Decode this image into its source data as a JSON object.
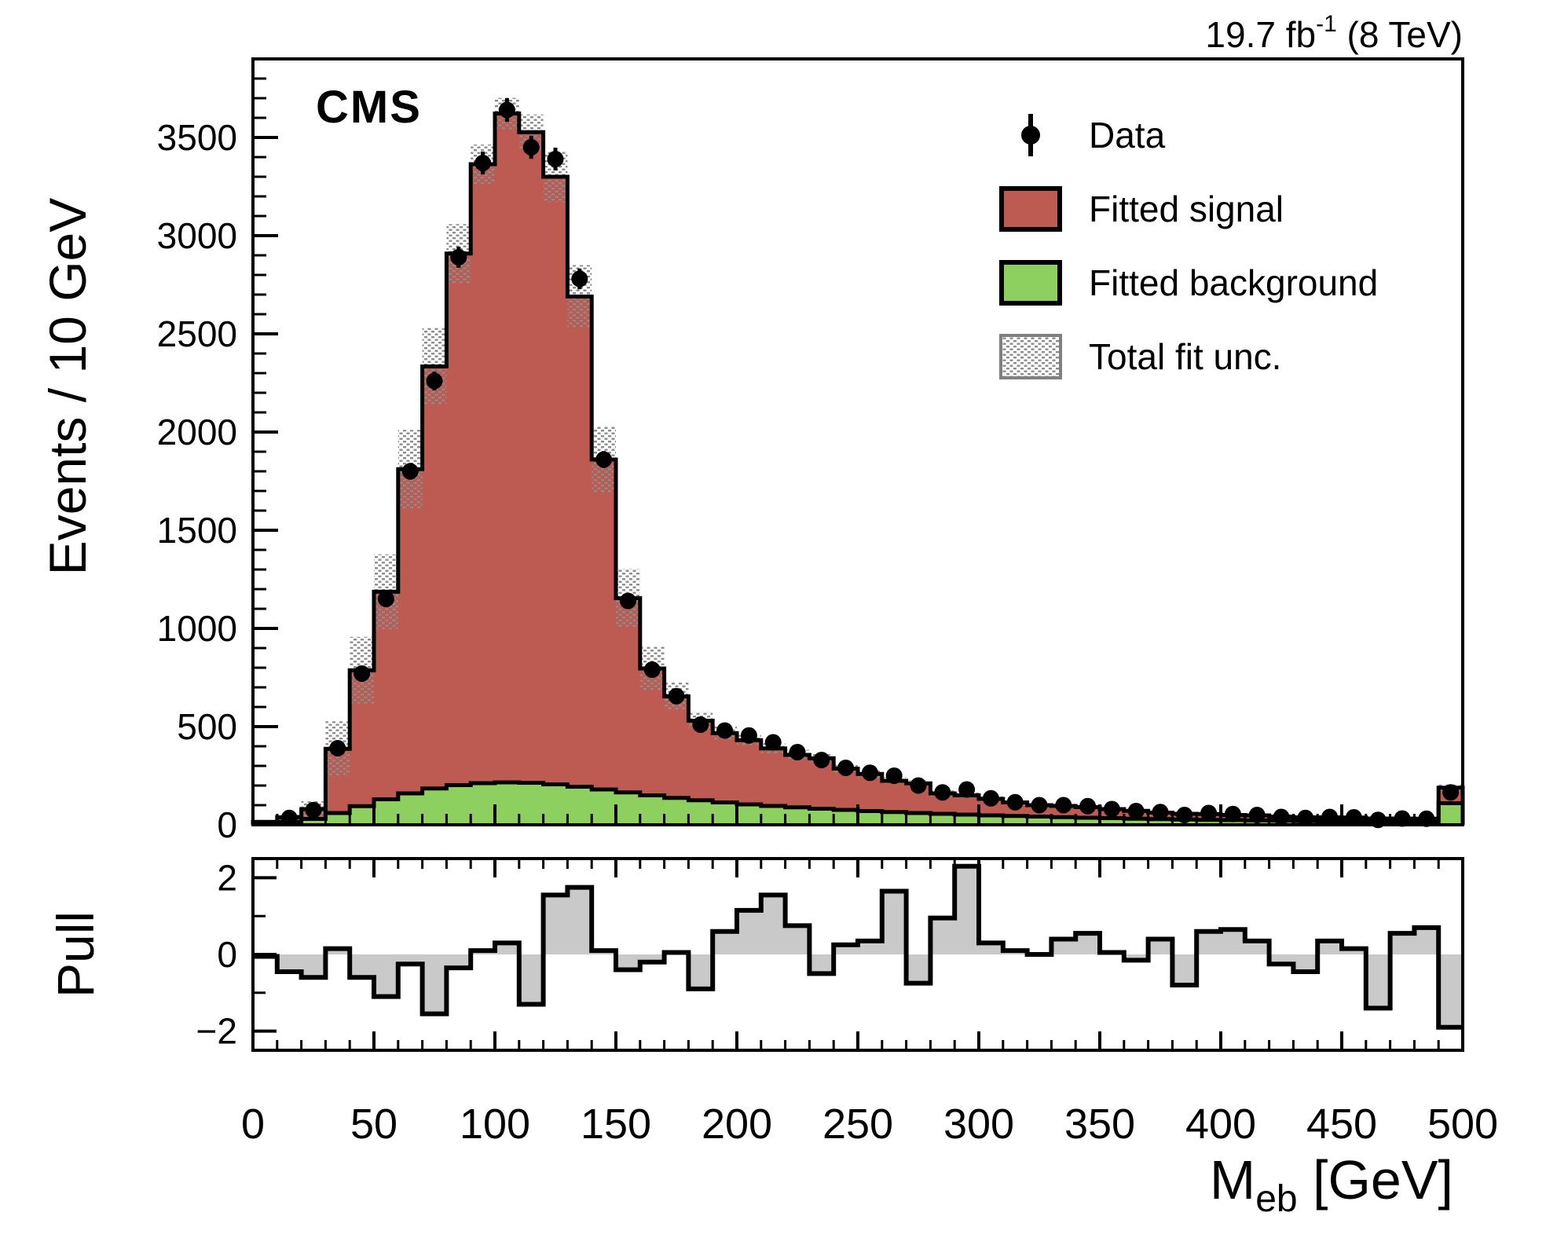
{
  "header": {
    "lumi_prefix": "19.7 fb",
    "lumi_superscript": "-1",
    "lumi_suffix": " (8 TeV)"
  },
  "experiment_label": "CMS",
  "legend": {
    "items": [
      {
        "id": "data",
        "label": "Data"
      },
      {
        "id": "fitted-signal",
        "label": "Fitted signal"
      },
      {
        "id": "fitted-background",
        "label": "Fitted background"
      },
      {
        "id": "total-fit-unc",
        "label": "Total fit unc."
      }
    ]
  },
  "axes": {
    "main_y_title": "Events / 10 GeV",
    "pull_y_title": "Pull",
    "x_title_main": "M",
    "x_title_sub": "eb",
    "x_title_unit": " [GeV]"
  },
  "colors": {
    "signal": "#bd5a52",
    "background": "#8ed060",
    "unc_dot": "#8c8c8c",
    "unc_legend_border": "#808080",
    "pull_fill": "#c9c9c9",
    "frame": "#000000",
    "marker": "#000000"
  },
  "chart_data": {
    "type": "bar",
    "subtype": "stacked-histogram-with-pull-panel",
    "xlabel": "M_eb [GeV]",
    "ylabel": "Events / 10 GeV",
    "pull_ylabel": "Pull",
    "bin_width_gev": 10,
    "x_range": [
      0,
      500
    ],
    "y_range": [
      0,
      3900
    ],
    "pull_y_range": [
      -2.5,
      2.5
    ],
    "x_major_ticks": [
      0,
      50,
      100,
      150,
      200,
      250,
      300,
      350,
      400,
      450,
      500
    ],
    "x_minor_step": 10,
    "y_major_ticks": [
      0,
      500,
      1000,
      1500,
      2000,
      2500,
      3000,
      3500
    ],
    "y_minor_step": 100,
    "pull_labeled_ticks": [
      -2,
      0,
      2
    ],
    "pull_minor_ticks": [
      -1,
      1
    ],
    "legend_position": "top-right-inside",
    "grid": false,
    "series": [
      {
        "name": "Fitted signal plus background (total fit)",
        "role": "fit_total",
        "values": [
          15,
          38,
          80,
          387,
          787,
          1187,
          1811,
          2334,
          2909,
          3364,
          3622,
          3527,
          3300,
          2690,
          1860,
          1154,
          796,
          654,
          530,
          467,
          431,
          389,
          356,
          339,
          286,
          259,
          224,
          211,
          160,
          150,
          132,
          114,
          100,
          96,
          90,
          80,
          71,
          62,
          56,
          55,
          50,
          48,
          42,
          38,
          38,
          37,
          32,
          32,
          31,
          189
        ]
      },
      {
        "name": "Fitted background",
        "role": "background",
        "values": [
          6,
          14,
          30,
          60,
          95,
          130,
          160,
          185,
          202,
          212,
          216,
          214,
          206,
          194,
          180,
          165,
          150,
          137,
          125,
          114,
          104,
          96,
          89,
          82,
          76,
          70,
          65,
          60,
          56,
          52,
          48,
          45,
          42,
          39,
          36,
          34,
          31,
          29,
          27,
          25,
          24,
          22,
          21,
          19,
          18,
          17,
          16,
          15,
          14,
          110
        ]
      },
      {
        "name": "Total fit uncertainty (half-width)",
        "role": "uncertainty",
        "values": [
          8,
          15,
          40,
          140,
          170,
          190,
          200,
          195,
          150,
          100,
          80,
          90,
          130,
          160,
          170,
          150,
          110,
          70,
          45,
          35,
          30,
          28,
          26,
          24,
          22,
          20,
          18,
          16,
          15,
          14,
          13,
          12,
          12,
          11,
          11,
          10,
          10,
          9,
          9,
          9,
          8,
          8,
          8,
          8,
          8,
          8,
          8,
          8,
          8,
          16
        ]
      },
      {
        "name": "Data",
        "role": "data",
        "values": [
          null,
          35,
          75,
          390,
          770,
          1150,
          1800,
          2260,
          2890,
          3370,
          3640,
          3450,
          3390,
          2780,
          1860,
          1140,
          790,
          655,
          510,
          480,
          455,
          420,
          370,
          330,
          290,
          265,
          250,
          200,
          165,
          180,
          135,
          115,
          100,
          100,
          95,
          80,
          70,
          65,
          50,
          60,
          55,
          50,
          40,
          35,
          40,
          38,
          25,
          32,
          31,
          165
        ]
      },
      {
        "name": "Pull",
        "role": "pull",
        "values": [
          -0.05,
          -0.45,
          -0.6,
          0.15,
          -0.6,
          -1.1,
          -0.25,
          -1.55,
          -0.35,
          0.1,
          0.3,
          -1.3,
          1.55,
          1.75,
          0.1,
          -0.4,
          -0.2,
          0.05,
          -0.9,
          0.6,
          1.15,
          1.55,
          0.75,
          -0.5,
          0.25,
          0.35,
          1.65,
          -0.75,
          0.95,
          2.3,
          0.3,
          0.1,
          0.0,
          0.4,
          0.55,
          0.05,
          -0.15,
          0.4,
          -0.8,
          0.6,
          0.65,
          0.35,
          -0.25,
          -0.45,
          0.35,
          0.15,
          -1.4,
          0.55,
          0.7,
          -1.9
        ]
      }
    ]
  }
}
